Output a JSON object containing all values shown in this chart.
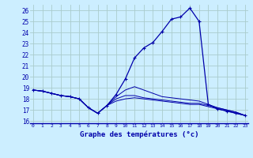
{
  "title": "Graphe des températures (°c)",
  "bg_color": "#cceeff",
  "grid_color": "#aacccc",
  "line_color": "#0000aa",
  "x_hours": [
    0,
    1,
    2,
    3,
    4,
    5,
    6,
    7,
    8,
    9,
    10,
    11,
    12,
    13,
    14,
    15,
    16,
    17,
    18,
    19,
    20,
    21,
    22,
    23
  ],
  "main_temps": [
    18.8,
    18.7,
    18.5,
    18.3,
    18.2,
    18.0,
    17.2,
    16.7,
    17.4,
    18.4,
    19.8,
    21.7,
    22.6,
    23.1,
    24.1,
    25.2,
    25.4,
    26.2,
    25.0,
    17.5,
    17.1,
    16.9,
    16.7,
    16.5
  ],
  "line2_temps": [
    18.8,
    18.7,
    18.5,
    18.3,
    18.2,
    18.0,
    17.2,
    16.7,
    17.4,
    18.2,
    18.8,
    19.1,
    18.8,
    18.5,
    18.2,
    18.1,
    18.0,
    17.9,
    17.8,
    17.5,
    17.2,
    17.0,
    16.8,
    16.5
  ],
  "line3_temps": [
    18.8,
    18.7,
    18.5,
    18.3,
    18.2,
    18.0,
    17.2,
    16.7,
    17.4,
    18.0,
    18.3,
    18.3,
    18.1,
    18.0,
    17.9,
    17.8,
    17.7,
    17.6,
    17.6,
    17.4,
    17.2,
    17.0,
    16.8,
    16.5
  ],
  "line4_temps": [
    18.8,
    18.7,
    18.5,
    18.3,
    18.2,
    18.0,
    17.2,
    16.7,
    17.4,
    17.8,
    18.0,
    18.1,
    18.0,
    17.9,
    17.8,
    17.7,
    17.6,
    17.5,
    17.5,
    17.3,
    17.1,
    16.9,
    16.7,
    16.5
  ],
  "ylim": [
    15.8,
    26.5
  ],
  "yticks": [
    16,
    17,
    18,
    19,
    20,
    21,
    22,
    23,
    24,
    25,
    26
  ],
  "xlim": [
    -0.3,
    23.3
  ],
  "marker": "+"
}
